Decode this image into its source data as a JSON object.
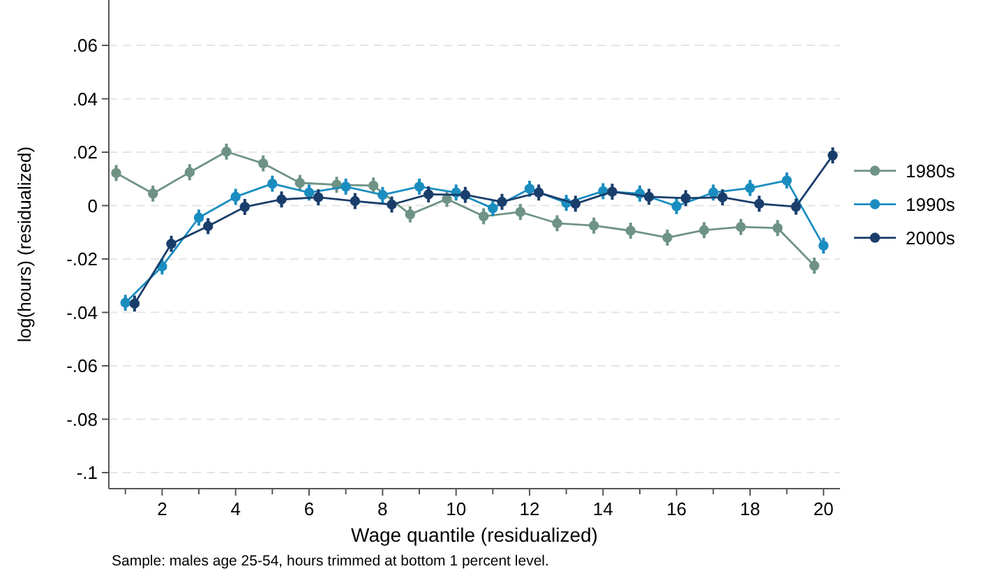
{
  "chart_data": {
    "type": "line",
    "xlabel": "Wage quantile (residualized)",
    "ylabel": "log(hours) (residualized)",
    "annotations": [
      "Sample: males age 25-54, hours trimmed at bottom 1 percent level."
    ],
    "xlim": [
      0.55,
      20.45
    ],
    "xticks": [
      2,
      4,
      6,
      8,
      10,
      12,
      14,
      16,
      18,
      20
    ],
    "ylim": [
      -0.106,
      0.077
    ],
    "yticks": [
      {
        "value": -0.1,
        "label": "-.1"
      },
      {
        "value": -0.08,
        "label": "-.08"
      },
      {
        "value": -0.06,
        "label": "-.06"
      },
      {
        "value": -0.04,
        "label": "-.04"
      },
      {
        "value": -0.02,
        "label": "-.02"
      },
      {
        "value": 0,
        "label": "0"
      },
      {
        "value": 0.02,
        "label": ".02"
      },
      {
        "value": 0.04,
        "label": ".04"
      },
      {
        "value": 0.06,
        "label": ".06"
      }
    ],
    "grid": "y",
    "legend": "right",
    "marker": "circle",
    "line_style": "solid",
    "series": [
      {
        "name": "1980s",
        "color": "#6e9384",
        "x": [
          0.75,
          1.75,
          2.75,
          3.75,
          4.75,
          5.75,
          6.75,
          7.75,
          8.75,
          9.75,
          10.75,
          11.75,
          12.75,
          13.75,
          14.75,
          15.75,
          16.75,
          17.75,
          18.75,
          19.75
        ],
        "values": [
          0.0122,
          0.0045,
          0.0125,
          0.0202,
          0.0158,
          0.0085,
          0.0078,
          0.0075,
          -0.0033,
          0.0025,
          -0.004,
          -0.0024,
          -0.0066,
          -0.0075,
          -0.0094,
          -0.012,
          -0.0092,
          -0.008,
          -0.0084,
          -0.0225
        ],
        "errors": [
          0.003,
          0.003,
          0.003,
          0.003,
          0.003,
          0.003,
          0.003,
          0.003,
          0.003,
          0.003,
          0.003,
          0.003,
          0.003,
          0.003,
          0.003,
          0.003,
          0.003,
          0.003,
          0.003,
          0.003
        ]
      },
      {
        "name": "1990s",
        "color": "#1a8dc0",
        "x": [
          1,
          2,
          3,
          4,
          5,
          6,
          7,
          8,
          9,
          10,
          11,
          12,
          13,
          14,
          15,
          16,
          17,
          18,
          19,
          20
        ],
        "values": [
          -0.0364,
          -0.0228,
          -0.0045,
          0.0033,
          0.0082,
          0.0049,
          0.0071,
          0.004,
          0.0071,
          0.0049,
          -0.001,
          0.0063,
          0.001,
          0.0054,
          0.0045,
          -0.0002,
          0.0049,
          0.0066,
          0.0094,
          -0.015
        ],
        "errors": [
          0.003,
          0.003,
          0.003,
          0.003,
          0.003,
          0.003,
          0.003,
          0.003,
          0.003,
          0.003,
          0.003,
          0.003,
          0.003,
          0.003,
          0.003,
          0.003,
          0.003,
          0.003,
          0.003,
          0.003
        ]
      },
      {
        "name": "2000s",
        "color": "#1a3e6b",
        "x": [
          1.25,
          2.25,
          3.25,
          4.25,
          5.25,
          6.25,
          7.25,
          8.25,
          9.25,
          10.25,
          11.25,
          12.25,
          13.25,
          14.25,
          15.25,
          16.25,
          17.25,
          18.25,
          19.25,
          20.25
        ],
        "values": [
          -0.0367,
          -0.0143,
          -0.0077,
          -0.0005,
          0.0023,
          0.0031,
          0.0017,
          0.0004,
          0.0042,
          0.004,
          0.0014,
          0.0049,
          0.0007,
          0.0052,
          0.0033,
          0.0028,
          0.0031,
          0.0007,
          -0.0004,
          0.0188
        ],
        "errors": [
          0.003,
          0.003,
          0.003,
          0.003,
          0.003,
          0.003,
          0.003,
          0.003,
          0.003,
          0.003,
          0.003,
          0.003,
          0.003,
          0.003,
          0.003,
          0.003,
          0.003,
          0.003,
          0.003,
          0.003
        ]
      }
    ]
  }
}
